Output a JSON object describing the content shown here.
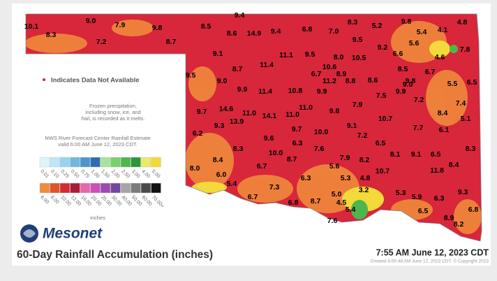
{
  "map": {
    "stations": [
      "10.1",
      "9.0",
      "7.9",
      "9.4",
      "8.3",
      "5.2",
      "9.8",
      "4.8",
      "8.3",
      "7.2",
      "9.8",
      "8.7",
      "8.5",
      "8.6",
      "14.9",
      "9.4",
      "6.8",
      "7.0",
      "9.5",
      "5.4",
      "4.1",
      "9.2",
      "5.6",
      "7.8",
      "6.6",
      "4.6",
      "9.1",
      "11.1",
      "9.5",
      "8.0",
      "10.5",
      "11.4",
      "8.7",
      "10.6",
      "8.5",
      "6.7",
      "8.9",
      "9.5",
      "9.0",
      "6.7",
      "11.2",
      "8.8",
      "8.6",
      "9.8",
      "5.5",
      "6.5",
      "9.9",
      "11.4",
      "10.8",
      "9.9",
      "7.5",
      "9.0",
      "9.9",
      "7.2",
      "7.4",
      "11.0",
      "7.9",
      "9.7",
      "14.6",
      "11.0",
      "14.1",
      "11.0",
      "9.8",
      "8.4",
      "13.9",
      "9.3",
      "9.1",
      "10.7",
      "5.1",
      "9.7",
      "10.0",
      "7.2",
      "7.7",
      "6.1",
      "6.2",
      "9.6",
      "6.5",
      "8.3",
      "6.3",
      "7.6",
      "10.0",
      "8.7",
      "8.1",
      "9.1",
      "6.5",
      "8.3",
      "8.4",
      "7.9",
      "8.2",
      "6.7",
      "5.6",
      "8.0",
      "8.4",
      "10.7",
      "11.8",
      "6.0",
      "6.3",
      "5.3",
      "4.8",
      "5.4",
      "7.3",
      "3.2",
      "9.3",
      "6.7",
      "5.0",
      "5.3",
      "5.9",
      "6.3",
      "6.8",
      "8.7",
      "4.5",
      "5.4",
      "6.5",
      "6.8",
      "7.6",
      "8.9",
      "8.2"
    ]
  },
  "notes": {
    "missing": "Indicates Data Not Available",
    "frozen": [
      "Frozen precipitation,",
      "including snow, ice, and",
      "hail, is recorded as it melts."
    ],
    "nws": [
      "NWS River Forecast Center Rainfall Estimate",
      "valid 6:00 AM June 12, 2023 CDT."
    ]
  },
  "legend": {
    "row1": [
      {
        "label": "0.01",
        "color": "#dff3fb"
      },
      {
        "label": "0.10",
        "color": "#bfe6f6"
      },
      {
        "label": "0.25",
        "color": "#98d2ee"
      },
      {
        "label": "0.50",
        "color": "#6fb8e0"
      },
      {
        "label": "0.75",
        "color": "#4c94cc"
      },
      {
        "label": "1.00",
        "color": "#2f6db2"
      },
      {
        "label": "1.50",
        "color": "#a8e39c"
      },
      {
        "label": "2.00",
        "color": "#79cf6e"
      },
      {
        "label": "2.50",
        "color": "#4db64c"
      },
      {
        "label": "3.00",
        "color": "#2a9638"
      },
      {
        "label": "4.00",
        "color": "#e8ea6a"
      },
      {
        "label": "5.00",
        "color": "#f3d93a"
      }
    ],
    "row2": [
      {
        "label": "6.00",
        "color": "#f08a3c"
      },
      {
        "label": "8.00",
        "color": "#e0542a"
      },
      {
        "label": "10.00",
        "color": "#d42a30"
      },
      {
        "label": "12.00",
        "color": "#a81c38"
      },
      {
        "label": "16.00",
        "color": "#e468ac"
      },
      {
        "label": "20.00",
        "color": "#c850b8"
      },
      {
        "label": "25.00",
        "color": "#9a4cae"
      },
      {
        "label": "30.00",
        "color": "#7446a0"
      },
      {
        "label": "40.00",
        "color": "#a6a6a6"
      },
      {
        "label": "50.00",
        "color": "#7c7c7c"
      },
      {
        "label": "60.00",
        "color": "#4a4a4a"
      },
      {
        "label": "70.00+",
        "color": "#111111"
      }
    ],
    "unit": "inches"
  },
  "brand": "Mesonet",
  "title": "60-Day Rainfall Accumulation (inches)",
  "timestamp": "7:55 AM June 12, 2023 CDT",
  "created": "Created 8:00:48 AM June 12, 2023 CDT. © Copyright 2023"
}
